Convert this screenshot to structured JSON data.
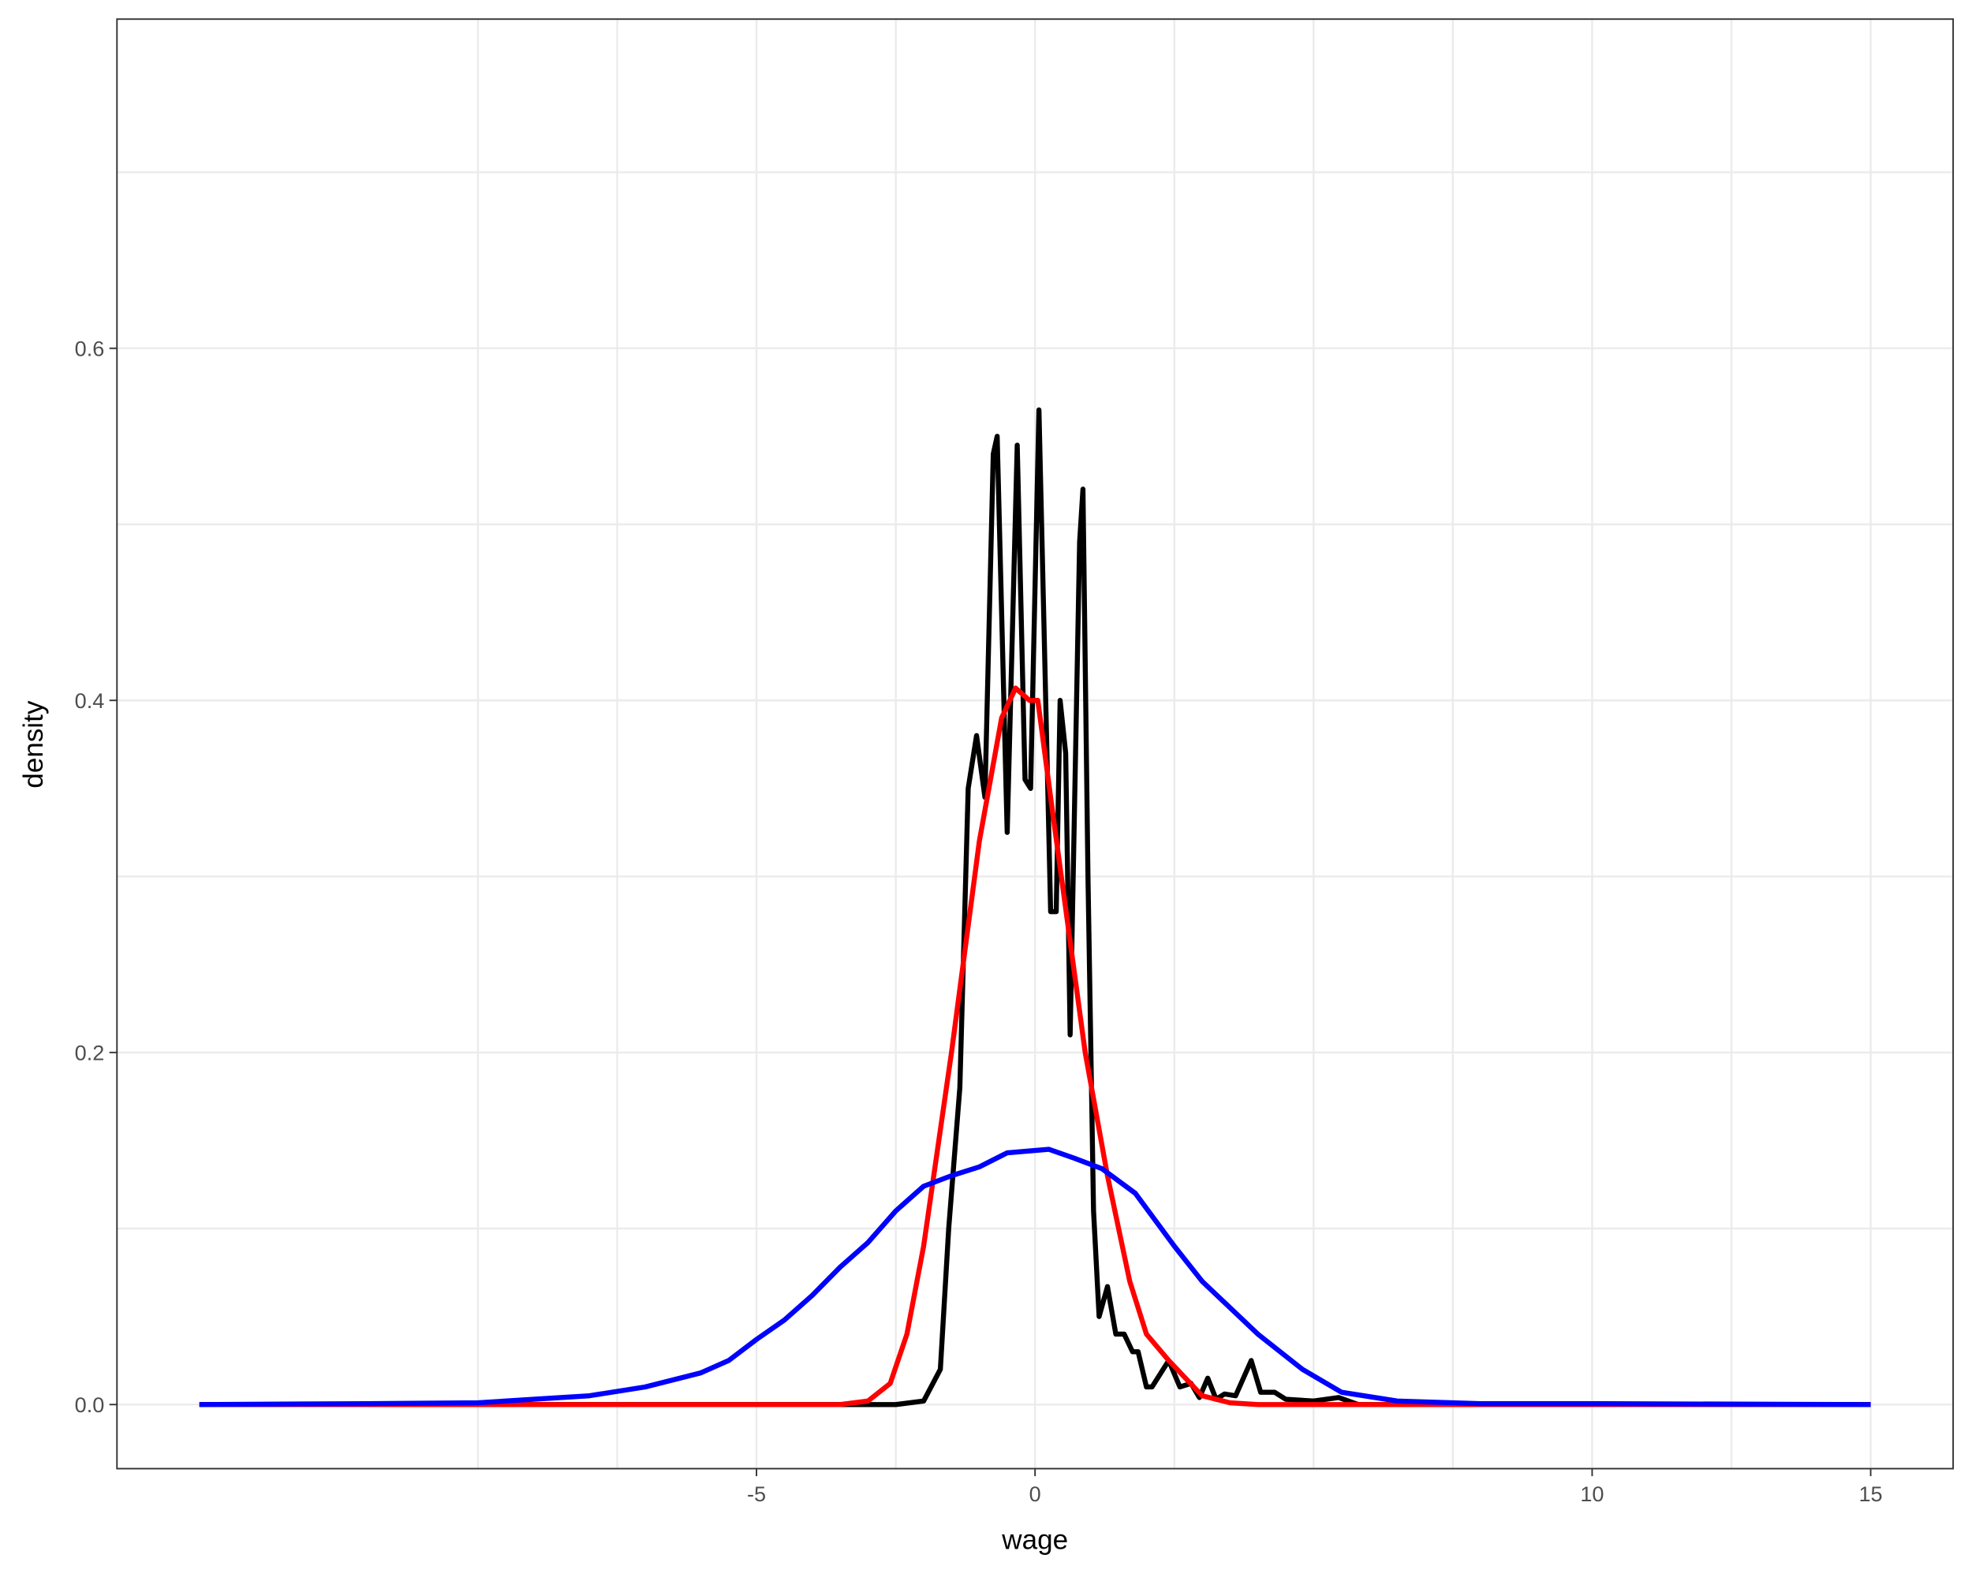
{
  "chart_data": {
    "type": "line",
    "x_label": "wage",
    "y_label": "density",
    "xlim": [
      -16.48,
      16.48
    ],
    "ylim": [
      -0.0364,
      0.787
    ],
    "xticks": [
      -5,
      0,
      10,
      15
    ],
    "xgrid": [
      -10,
      -7.5,
      -5,
      -2.5,
      0,
      2.5,
      5,
      7.5,
      10,
      12.5,
      15
    ],
    "yticks": [
      {
        "value": 0,
        "label": "0.0"
      },
      {
        "value": 0.2,
        "label": "0.2"
      },
      {
        "value": 0.4,
        "label": "0.4"
      },
      {
        "value": 0.6,
        "label": "0.6"
      }
    ],
    "ygrid": [
      0,
      0.1,
      0.2,
      0.3,
      0.4,
      0.5,
      0.6,
      0.7
    ],
    "grid": true,
    "series": [
      {
        "color": "#000000",
        "x": [
          -15,
          -2.5,
          -2,
          -1.7,
          -1.55,
          -1.35,
          -1.2,
          -1.05,
          -0.9,
          -0.75,
          -0.68,
          -0.5,
          -0.32,
          -0.18,
          -0.08,
          0.07,
          0.28,
          0.38,
          0.45,
          0.55,
          0.63,
          0.8,
          0.86,
          0.95,
          1.05,
          1.15,
          1.3,
          1.45,
          1.6,
          1.75,
          1.85,
          2.0,
          2.1,
          2.4,
          2.6,
          2.8,
          2.95,
          3.1,
          3.25,
          3.4,
          3.6,
          3.88,
          4.05,
          4.3,
          4.5,
          5,
          5.45,
          5.8,
          15
        ],
        "values": [
          0,
          0,
          0.002,
          0.02,
          0.1,
          0.18,
          0.35,
          0.38,
          0.345,
          0.54,
          0.55,
          0.325,
          0.545,
          0.355,
          0.35,
          0.565,
          0.28,
          0.28,
          0.4,
          0.37,
          0.21,
          0.49,
          0.52,
          0.3,
          0.11,
          0.05,
          0.067,
          0.04,
          0.04,
          0.03,
          0.03,
          0.01,
          0.01,
          0.025,
          0.01,
          0.012,
          0.004,
          0.015,
          0.003,
          0.006,
          0.005,
          0.025,
          0.007,
          0.007,
          0.003,
          0.002,
          0.004,
          0,
          0
        ]
      },
      {
        "color": "#ff0000",
        "x": [
          -15,
          -3.5,
          -3,
          -2.6,
          -2.3,
          -2,
          -1.5,
          -1,
          -0.6,
          -0.35,
          -0.1,
          0.05,
          0.3,
          0.6,
          0.9,
          1.3,
          1.7,
          2.0,
          2.4,
          2.7,
          3.0,
          3.5,
          4,
          15
        ],
        "values": [
          0,
          0,
          0.002,
          0.012,
          0.04,
          0.09,
          0.2,
          0.32,
          0.39,
          0.407,
          0.4,
          0.4,
          0.34,
          0.27,
          0.2,
          0.13,
          0.07,
          0.04,
          0.025,
          0.015,
          0.005,
          0.001,
          0,
          0
        ]
      },
      {
        "color": "#0000ff",
        "x": [
          -15,
          -12,
          -10,
          -9,
          -8,
          -7,
          -6,
          -5.5,
          -5,
          -4.5,
          -4,
          -3.5,
          -3,
          -2.5,
          -2,
          -1.5,
          -1,
          -0.5,
          0.25,
          0.7,
          1.2,
          1.8,
          2.5,
          3,
          4,
          4.8,
          5.5,
          6.5,
          8,
          10,
          15
        ],
        "values": [
          0,
          0.0005,
          0.001,
          0.003,
          0.005,
          0.01,
          0.018,
          0.025,
          0.037,
          0.048,
          0.062,
          0.078,
          0.092,
          0.11,
          0.124,
          0.13,
          0.135,
          0.143,
          0.145,
          0.14,
          0.134,
          0.12,
          0.09,
          0.07,
          0.04,
          0.02,
          0.007,
          0.002,
          0.0005,
          0.0005,
          0
        ]
      }
    ]
  }
}
